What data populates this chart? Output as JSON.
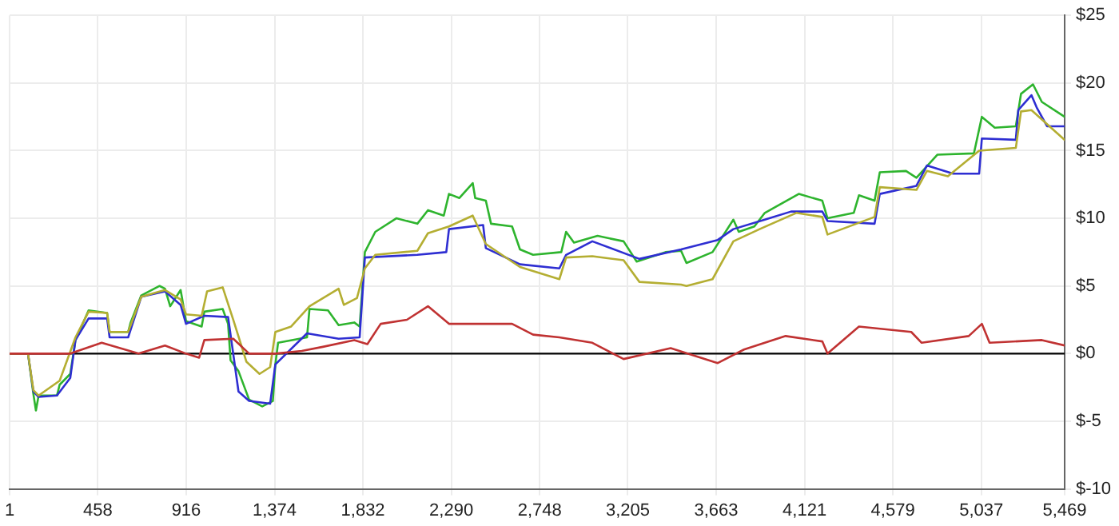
{
  "chart_data": {
    "type": "line",
    "grid": true,
    "legend": false,
    "marker": "none",
    "line_style": "solid",
    "xlim": [
      1,
      5469
    ],
    "xticks": [
      1,
      458,
      916,
      {
        "value": 1374,
        "label": "1,374"
      },
      {
        "value": 1832,
        "label": "1,832"
      },
      {
        "value": 2290,
        "label": "2,290"
      },
      {
        "value": 2748,
        "label": "2,748"
      },
      {
        "value": 3205,
        "label": "3,205"
      },
      {
        "value": 3663,
        "label": "3,663"
      },
      {
        "value": 4121,
        "label": "4,121"
      },
      {
        "value": 4579,
        "label": "4,579"
      },
      {
        "value": 5037,
        "label": "5,037"
      },
      {
        "value": 5469,
        "label": "5,469"
      }
    ],
    "ylim": [
      -10,
      25
    ],
    "yticks": [
      {
        "value": -10,
        "label": "$-10"
      },
      {
        "value": -5,
        "label": "$-5"
      },
      {
        "value": 0,
        "label": "$0"
      },
      {
        "value": 5,
        "label": "$5"
      },
      {
        "value": 10,
        "label": "$10"
      },
      {
        "value": 15,
        "label": "$15"
      },
      {
        "value": 20,
        "label": "$20"
      },
      {
        "value": 25,
        "label": "$25"
      }
    ],
    "ref_lines": [
      {
        "axis": "y",
        "value": 0,
        "color": "#000000"
      }
    ],
    "series": [
      {
        "color": "#c03232",
        "x": [
          1,
          315,
          478,
          669,
          806,
          915,
          983,
          1010,
          1160,
          1242,
          1378,
          1515,
          1624,
          1787,
          1855,
          1924,
          2060,
          2169,
          2278,
          2605,
          2714,
          2850,
          3021,
          3183,
          3427,
          3671,
          3807,
          4023,
          4213,
          4240,
          4403,
          4674,
          4728,
          4972,
          5040,
          5080,
          5351,
          5469
        ],
        "values": [
          0,
          0,
          0.8,
          0,
          0.6,
          0,
          -0.3,
          1,
          1.1,
          0,
          0,
          0.2,
          0.5,
          1,
          0.7,
          2.2,
          2.5,
          3.5,
          2.2,
          2.2,
          1.4,
          1.2,
          0.8,
          -0.4,
          0.4,
          -0.7,
          0.3,
          1.3,
          0.9,
          0,
          2,
          1.6,
          0.8,
          1.3,
          2.2,
          0.8,
          1,
          0.6
        ]
      },
      {
        "color": "#b4ae32",
        "x": [
          1,
          96,
          124,
          151,
          260,
          342,
          410,
          506,
          519,
          615,
          683,
          806,
          887,
          915,
          996,
          1024,
          1105,
          1160,
          1228,
          1296,
          1351,
          1378,
          1460,
          1555,
          1706,
          1733,
          1801,
          1842,
          1896,
          2114,
          2169,
          2278,
          2401,
          2469,
          2646,
          2850,
          2885,
          3021,
          3183,
          3265,
          3481,
          3509,
          3644,
          3752,
          3888,
          4078,
          4213,
          4240,
          4484,
          4511,
          4701,
          4755,
          4864,
          5026,
          5216,
          5243,
          5297,
          5469
        ],
        "values": [
          0,
          0,
          -2.7,
          -3.1,
          -2,
          1.2,
          3.1,
          3,
          1.6,
          1.6,
          4.2,
          4.7,
          4,
          2.9,
          2.8,
          4.6,
          4.9,
          2.5,
          -0.6,
          -1.5,
          -1,
          1.6,
          2,
          3.5,
          4.8,
          3.6,
          4.1,
          6.3,
          7.3,
          7.6,
          8.9,
          9.4,
          10.2,
          8.1,
          6.4,
          5.5,
          7.1,
          7.2,
          6.9,
          5.3,
          5.1,
          5,
          5.5,
          8.3,
          9.2,
          10.4,
          10.1,
          8.8,
          10.1,
          12.3,
          12.1,
          13.5,
          13.1,
          15,
          15.2,
          17.9,
          18,
          15.8
        ]
      },
      {
        "color": "#2e2ed2",
        "x": [
          1,
          96,
          124,
          151,
          246,
          315,
          342,
          410,
          506,
          519,
          615,
          683,
          806,
          887,
          915,
          1010,
          1133,
          1187,
          1242,
          1351,
          1378,
          1542,
          1706,
          1815,
          1842,
          2114,
          2264,
          2278,
          2455,
          2469,
          2646,
          2850,
          2885,
          3021,
          3265,
          3481,
          3671,
          3752,
          3915,
          4051,
          4213,
          4240,
          4484,
          4511,
          4701,
          4755,
          4891,
          5026,
          5040,
          5216,
          5229,
          5297,
          5324,
          5378,
          5469
        ],
        "values": [
          0,
          0,
          -2.8,
          -3.2,
          -3.1,
          -1.8,
          1,
          2.6,
          2.6,
          1.2,
          1.2,
          4.2,
          4.6,
          3.6,
          2.2,
          2.8,
          2.7,
          -2.8,
          -3.5,
          -3.7,
          -0.8,
          1.5,
          1.1,
          1.2,
          7.1,
          7.3,
          7.5,
          9.2,
          9.5,
          7.8,
          6.6,
          6.3,
          7.3,
          8.3,
          7,
          7.7,
          8.4,
          9.2,
          9.9,
          10.5,
          10.5,
          9.8,
          9.6,
          11.8,
          12.4,
          13.9,
          13.3,
          13.3,
          15.9,
          15.8,
          18,
          19.1,
          18.2,
          16.8,
          16.8
        ]
      },
      {
        "color": "#2eb42e",
        "x": [
          1,
          96,
          124,
          137,
          151,
          246,
          260,
          315,
          342,
          410,
          506,
          519,
          615,
          628,
          683,
          778,
          806,
          833,
          887,
          915,
          996,
          1010,
          1105,
          1133,
          1146,
          1187,
          1242,
          1310,
          1365,
          1378,
          1392,
          1542,
          1555,
          1651,
          1706,
          1787,
          1815,
          1842,
          1896,
          2005,
          2114,
          2169,
          2251,
          2278,
          2332,
          2401,
          2414,
          2469,
          2496,
          2605,
          2646,
          2714,
          2860,
          2885,
          2926,
          3048,
          3183,
          3251,
          3400,
          3481,
          3509,
          3644,
          3752,
          3780,
          3861,
          3915,
          4091,
          4213,
          4240,
          4376,
          4403,
          4484,
          4511,
          4647,
          4701,
          4809,
          4999,
          5040,
          5107,
          5216,
          5243,
          5305,
          5351,
          5469
        ],
        "values": [
          0,
          0,
          -3,
          -4.2,
          -3.1,
          -3.1,
          -2.3,
          -1.5,
          1,
          3.2,
          3,
          1.6,
          1.6,
          2.3,
          4.3,
          5,
          4.8,
          3.5,
          4.7,
          2.4,
          2,
          3.1,
          3.3,
          2.2,
          -0.5,
          -1.3,
          -3.4,
          -3.9,
          -3.5,
          -0.8,
          0.8,
          1.2,
          3.3,
          3.2,
          2.1,
          2.3,
          2,
          7.5,
          9,
          10,
          9.6,
          10.6,
          10.2,
          11.8,
          11.5,
          12.6,
          11.5,
          11.3,
          9.6,
          9.4,
          7.7,
          7.3,
          7.5,
          9,
          8.2,
          8.7,
          8.3,
          6.8,
          7.5,
          7.6,
          6.7,
          7.5,
          9.9,
          9,
          9.4,
          10.4,
          11.8,
          11.3,
          10,
          10.4,
          11.7,
          11.3,
          13.4,
          13.5,
          13,
          14.7,
          14.8,
          17.5,
          16.7,
          16.8,
          19.2,
          19.9,
          18.6,
          17.5
        ]
      }
    ]
  }
}
